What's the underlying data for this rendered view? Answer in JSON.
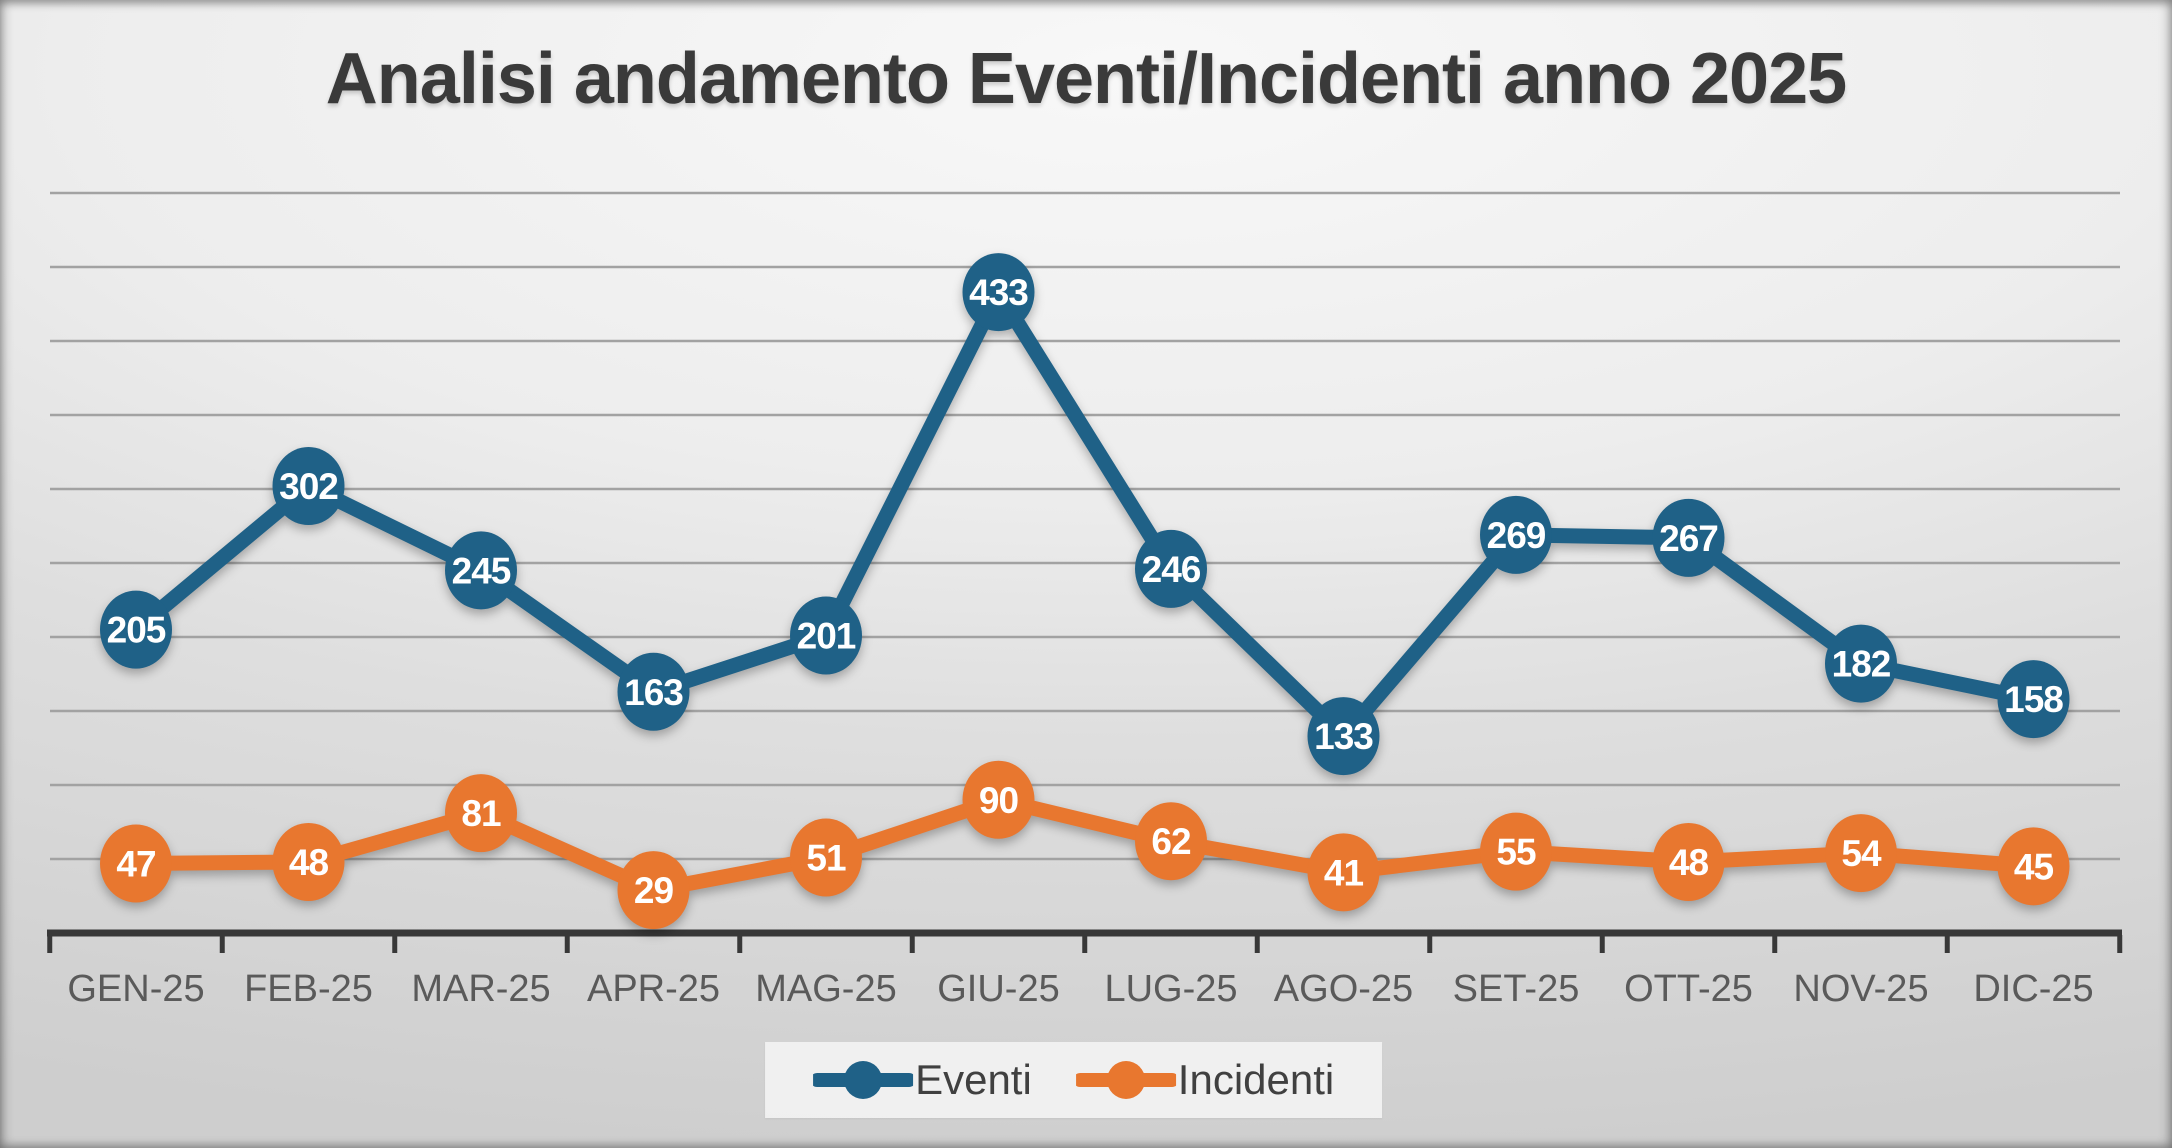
{
  "title": "Analisi andamento Eventi/Incidenti anno 2025",
  "chart_data": {
    "type": "line",
    "categories": [
      "GEN-25",
      "FEB-25",
      "MAR-25",
      "APR-25",
      "MAG-25",
      "GIU-25",
      "LUG-25",
      "AGO-25",
      "SET-25",
      "OTT-25",
      "NOV-25",
      "DIC-25"
    ],
    "series": [
      {
        "name": "Eventi",
        "color": "#1f6187",
        "values": [
          205,
          302,
          245,
          163,
          201,
          433,
          246,
          133,
          269,
          267,
          182,
          158
        ]
      },
      {
        "name": "Incidenti",
        "color": "#e8772f",
        "values": [
          47,
          48,
          81,
          29,
          51,
          90,
          62,
          41,
          55,
          48,
          54,
          45
        ]
      }
    ],
    "xlabel": "",
    "ylabel": "",
    "ylim": [
      0,
      500
    ],
    "gridline_step": 50,
    "grid": "horizontal-only",
    "y_axis_labels_visible": false,
    "data_labels": "centered-on-markers",
    "legend_position": "bottom-center",
    "marker_style": "filled-circle",
    "axis_color": "#383838",
    "gridline_color": "#a2a2a2",
    "x_label_color": "#5a5a5a",
    "title_color": "#3a3a3a"
  }
}
